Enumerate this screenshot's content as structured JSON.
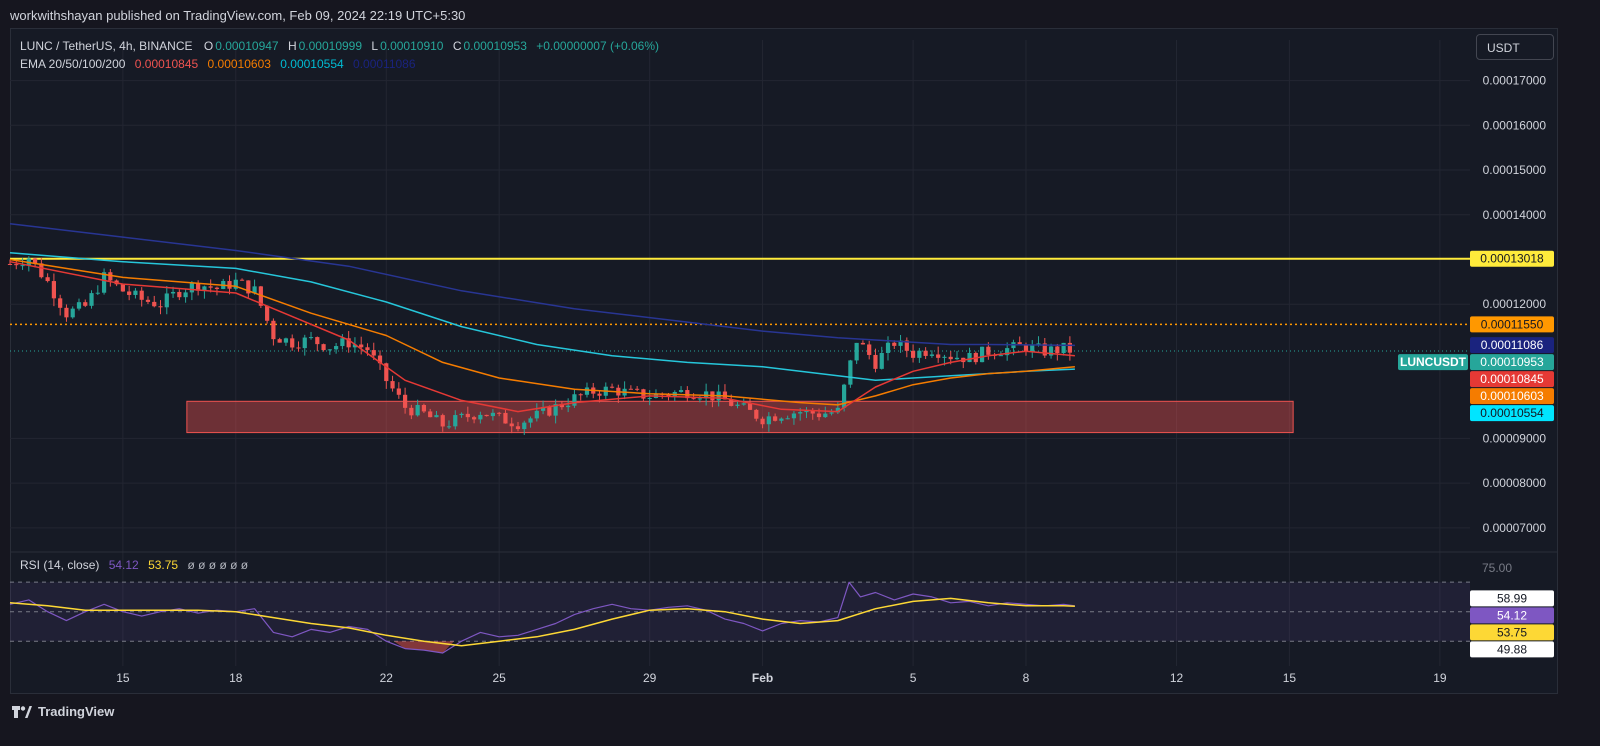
{
  "header": {
    "published": "workwithshayan published on TradingView.com, Feb 09, 2024 22:19 UTC+5:30"
  },
  "legend": {
    "symbol": "LUNC / TetherUS, 4h, BINANCE",
    "o_label": "O",
    "o": "0.00010947",
    "h_label": "H",
    "h": "0.00010999",
    "l_label": "L",
    "l": "0.00010910",
    "c_label": "C",
    "c": "0.00010953",
    "change": "+0.00000007 (+0.06%)",
    "ema_label": "EMA 20/50/100/200",
    "ema20": "0.00010845",
    "ema50": "0.00010603",
    "ema100": "0.00010554",
    "ema200": "0.00011086",
    "rsi_label": "RSI (14, close)",
    "rsi": "54.12",
    "rsi_ma": "53.75",
    "rsi_extra": "ø ø ø ø ø ø"
  },
  "currency_button": "USDT",
  "footer": {
    "brand": "TradingView",
    "logo_icon": "tradingview-logo-icon"
  },
  "colors": {
    "up": "#26a69a",
    "down": "#ef5350",
    "ema20": "#e53935",
    "ema50": "#f57c00",
    "ema100": "#00bcd4",
    "ema200": "#1a237e",
    "resistance": "#ffeb3b",
    "dotted": "#ff9800",
    "zone": "#ef5350",
    "rsi": "#7e57c2",
    "rsi_ma": "#fdd835"
  },
  "chart_data": {
    "type": "candlestick",
    "ylim": [
      6.55e-05,
      0.0001746
    ],
    "y_ticks": [
      "0.00017000",
      "0.00016000",
      "0.00015000",
      "0.00014000",
      "0.00012000",
      "0.00009000",
      "0.00008000",
      "0.00007000"
    ],
    "x_ticks": [
      {
        "label": "15",
        "day": 15
      },
      {
        "label": "18",
        "day": 18
      },
      {
        "label": "22",
        "day": 22
      },
      {
        "label": "25",
        "day": 25
      },
      {
        "label": "29",
        "day": 29
      },
      {
        "label": "Feb",
        "day": 32
      },
      {
        "label": "5",
        "day": 36
      },
      {
        "label": "8",
        "day": 39
      },
      {
        "label": "12",
        "day": 43
      },
      {
        "label": "15",
        "day": 46
      },
      {
        "label": "19",
        "day": 50
      }
    ],
    "x_day_range": [
      12.0,
      50.8
    ],
    "resistance_level": 0.00013018,
    "dotted_level": 0.0001155,
    "demand_zone": {
      "from_day": 16.7,
      "to_day": 46.1,
      "low": 9.13e-05,
      "high": 9.83e-05
    },
    "price_labels": [
      {
        "text": "0.00013018",
        "value": 0.00013018,
        "bg": "#ffeb3b",
        "fg": "#131722"
      },
      {
        "text": "0.00011550",
        "value": 0.0001155,
        "bg": "#ff9800",
        "fg": "#131722"
      },
      {
        "text": "0.00011086",
        "value": 0.00011086,
        "bg": "#1a237e",
        "fg": "#ffffff"
      },
      {
        "text": "0.00010953",
        "value": 0.00010953,
        "bg": "#26a69a",
        "fg": "#ffffff",
        "tag": "LUNCUSDT"
      },
      {
        "text": "0.00010845",
        "value": 0.00010845,
        "bg": "#e53935",
        "fg": "#ffffff"
      },
      {
        "text": "0.00010603",
        "value": 0.00010603,
        "bg": "#f57c00",
        "fg": "#ffffff"
      },
      {
        "text": "0.00010554",
        "value": 0.00010554,
        "bg": "#00e5ff",
        "fg": "#131722"
      }
    ],
    "closes": [
      [
        12.0,
        0.000129
      ],
      [
        12.5,
        0.0001305
      ],
      [
        13.0,
        0.000125
      ],
      [
        13.5,
        0.000118
      ],
      [
        14.0,
        0.0001195
      ],
      [
        14.5,
        0.000126
      ],
      [
        15.0,
        0.000123
      ],
      [
        15.5,
        0.000121
      ],
      [
        16.0,
        0.00012
      ],
      [
        16.5,
        0.000123
      ],
      [
        17.0,
        0.0001245
      ],
      [
        17.5,
        0.0001235
      ],
      [
        18.0,
        0.000125
      ],
      [
        18.5,
        0.000123
      ],
      [
        19.0,
        0.000113
      ],
      [
        19.5,
        0.0001115
      ],
      [
        20.0,
        0.000112
      ],
      [
        20.5,
        0.0001105
      ],
      [
        21.0,
        0.0001115
      ],
      [
        21.5,
        0.00011
      ],
      [
        22.0,
        0.000103
      ],
      [
        22.5,
        9.7e-05
      ],
      [
        23.0,
        9.55e-05
      ],
      [
        23.5,
        9.3e-05
      ],
      [
        24.0,
        9.45e-05
      ],
      [
        24.5,
        9.6e-05
      ],
      [
        25.0,
        9.45e-05
      ],
      [
        25.5,
        9.35e-05
      ],
      [
        26.0,
        9.5e-05
      ],
      [
        26.5,
        9.7e-05
      ],
      [
        27.0,
        9.9e-05
      ],
      [
        27.5,
        0.0001005
      ],
      [
        28.0,
        0.000101
      ],
      [
        28.5,
        0.0001
      ],
      [
        29.0,
        9.95e-05
      ],
      [
        29.5,
        0.0001
      ],
      [
        30.0,
        0.0001005
      ],
      [
        30.5,
        0.0001
      ],
      [
        31.0,
        9.85e-05
      ],
      [
        31.5,
        9.65e-05
      ],
      [
        32.0,
        9.45e-05
      ],
      [
        32.5,
        9.55e-05
      ],
      [
        33.0,
        9.6e-05
      ],
      [
        33.5,
        9.55e-05
      ],
      [
        34.0,
        9.6e-05
      ],
      [
        34.5,
        0.000112
      ],
      [
        35.0,
        0.000107
      ],
      [
        35.5,
        0.0001115
      ],
      [
        36.0,
        0.000109
      ],
      [
        36.5,
        0.00011
      ],
      [
        37.0,
        0.0001085
      ],
      [
        37.5,
        0.000108
      ],
      [
        38.0,
        0.0001095
      ],
      [
        38.5,
        0.00011
      ],
      [
        39.0,
        0.0001105
      ],
      [
        39.5,
        0.0001095
      ],
      [
        40.0,
        0.00011
      ],
      [
        40.3,
        0.0001095
      ]
    ],
    "ema20_path": [
      [
        12.0,
        0.0001295
      ],
      [
        15,
        0.0001245
      ],
      [
        18,
        0.0001225
      ],
      [
        19,
        0.000119
      ],
      [
        21,
        0.000112
      ],
      [
        22.5,
        0.000103
      ],
      [
        24,
        9.85e-05
      ],
      [
        25.5,
        9.6e-05
      ],
      [
        27,
        9.8e-05
      ],
      [
        29,
        9.95e-05
      ],
      [
        31,
        9.9e-05
      ],
      [
        32.5,
        9.65e-05
      ],
      [
        34,
        9.6e-05
      ],
      [
        35,
        0.0001015
      ],
      [
        36,
        0.000105
      ],
      [
        37,
        0.000107
      ],
      [
        38,
        0.0001085
      ],
      [
        39,
        0.0001095
      ],
      [
        40.3,
        0.0001085
      ]
    ],
    "ema50_path": [
      [
        12.0,
        0.00013
      ],
      [
        15,
        0.000126
      ],
      [
        18,
        0.000124
      ],
      [
        20,
        0.000118
      ],
      [
        22,
        0.000113
      ],
      [
        23.5,
        0.000107
      ],
      [
        25,
        0.0001035
      ],
      [
        27,
        0.000101
      ],
      [
        29,
        0.0001
      ],
      [
        31,
        9.95e-05
      ],
      [
        33,
        9.8e-05
      ],
      [
        34,
        9.75e-05
      ],
      [
        35,
        9.95e-05
      ],
      [
        36,
        0.000102
      ],
      [
        37,
        0.0001035
      ],
      [
        38,
        0.0001045
      ],
      [
        39,
        0.000105
      ],
      [
        40.3,
        0.000106
      ]
    ],
    "ema100_path": [
      [
        12.0,
        0.0001315
      ],
      [
        15,
        0.0001295
      ],
      [
        18,
        0.000128
      ],
      [
        20,
        0.000125
      ],
      [
        22,
        0.0001205
      ],
      [
        24,
        0.000115
      ],
      [
        26,
        0.000111
      ],
      [
        28,
        0.0001085
      ],
      [
        30,
        0.000107
      ],
      [
        32,
        0.000106
      ],
      [
        34,
        0.000104
      ],
      [
        35,
        0.000103
      ],
      [
        36,
        0.0001035
      ],
      [
        37,
        0.000104
      ],
      [
        38,
        0.0001045
      ],
      [
        39,
        0.000105
      ],
      [
        40.3,
        0.0001055
      ]
    ],
    "ema200_path": [
      [
        12.0,
        0.000138
      ],
      [
        15,
        0.000135
      ],
      [
        18,
        0.000132
      ],
      [
        21,
        0.0001285
      ],
      [
        24,
        0.000123
      ],
      [
        27,
        0.000119
      ],
      [
        30,
        0.000116
      ],
      [
        32,
        0.000114
      ],
      [
        34,
        0.0001125
      ],
      [
        35,
        0.000112
      ],
      [
        36,
        0.0001115
      ],
      [
        37,
        0.000111
      ],
      [
        38,
        0.000111
      ],
      [
        40.3,
        0.0001108
      ]
    ],
    "rsi": {
      "ylim": [
        20,
        85
      ],
      "levels": [
        70,
        50,
        30
      ],
      "top_label": "75.00",
      "labels": [
        {
          "text": "58.99",
          "value": 58.99,
          "bg": "#ffffff",
          "fg": "#131722"
        },
        {
          "text": "54.12",
          "value": 54.12,
          "bg": "#7e57c2",
          "fg": "#ffffff"
        },
        {
          "text": "53.75",
          "value": 53.75,
          "bg": "#fdd835",
          "fg": "#131722"
        },
        {
          "text": "49.88",
          "value": 49.88,
          "bg": "#ffffff",
          "fg": "#131722"
        }
      ],
      "rsi_path": [
        [
          12.0,
          55
        ],
        [
          12.5,
          58
        ],
        [
          13.0,
          50
        ],
        [
          13.5,
          44
        ],
        [
          14,
          50
        ],
        [
          14.5,
          55
        ],
        [
          15,
          50
        ],
        [
          15.5,
          47
        ],
        [
          16,
          50
        ],
        [
          16.5,
          52
        ],
        [
          17,
          49
        ],
        [
          17.5,
          51
        ],
        [
          18,
          50
        ],
        [
          18.5,
          52
        ],
        [
          19,
          36
        ],
        [
          19.5,
          33
        ],
        [
          20,
          38
        ],
        [
          20.5,
          36
        ],
        [
          21,
          40
        ],
        [
          21.5,
          38
        ],
        [
          22,
          30
        ],
        [
          22.5,
          25
        ],
        [
          23,
          24
        ],
        [
          23.5,
          22
        ],
        [
          24,
          30
        ],
        [
          24.5,
          36
        ],
        [
          25,
          33
        ],
        [
          25.5,
          34
        ],
        [
          26,
          38
        ],
        [
          26.5,
          42
        ],
        [
          27,
          48
        ],
        [
          27.5,
          52
        ],
        [
          28,
          55
        ],
        [
          28.5,
          52
        ],
        [
          29,
          51
        ],
        [
          29.5,
          53
        ],
        [
          30,
          54
        ],
        [
          30.5,
          51
        ],
        [
          31,
          45
        ],
        [
          31.5,
          42
        ],
        [
          32,
          37
        ],
        [
          32.5,
          42
        ],
        [
          33,
          44
        ],
        [
          33.5,
          43
        ],
        [
          34,
          46
        ],
        [
          34.3,
          70
        ],
        [
          34.6,
          60
        ],
        [
          35,
          63
        ],
        [
          35.5,
          58
        ],
        [
          36,
          62
        ],
        [
          36.5,
          60
        ],
        [
          37,
          56
        ],
        [
          37.5,
          57
        ],
        [
          38,
          54
        ],
        [
          38.5,
          56
        ],
        [
          39,
          55
        ],
        [
          39.5,
          54
        ],
        [
          40,
          55
        ],
        [
          40.3,
          54
        ]
      ],
      "ma_path": [
        [
          12.0,
          56
        ],
        [
          13,
          54
        ],
        [
          14,
          51
        ],
        [
          15,
          51
        ],
        [
          16,
          51
        ],
        [
          17,
          51
        ],
        [
          18,
          50
        ],
        [
          19,
          46
        ],
        [
          20,
          42
        ],
        [
          21,
          39
        ],
        [
          22,
          34
        ],
        [
          23,
          30
        ],
        [
          24,
          27
        ],
        [
          25,
          30
        ],
        [
          26,
          33
        ],
        [
          27,
          38
        ],
        [
          28,
          45
        ],
        [
          29,
          51
        ],
        [
          30,
          52
        ],
        [
          31,
          50
        ],
        [
          32,
          45
        ],
        [
          33,
          42
        ],
        [
          34,
          44
        ],
        [
          35,
          52
        ],
        [
          36,
          57
        ],
        [
          37,
          59
        ],
        [
          38,
          56
        ],
        [
          39,
          54
        ],
        [
          40,
          54
        ],
        [
          40.3,
          53.75
        ]
      ]
    }
  }
}
